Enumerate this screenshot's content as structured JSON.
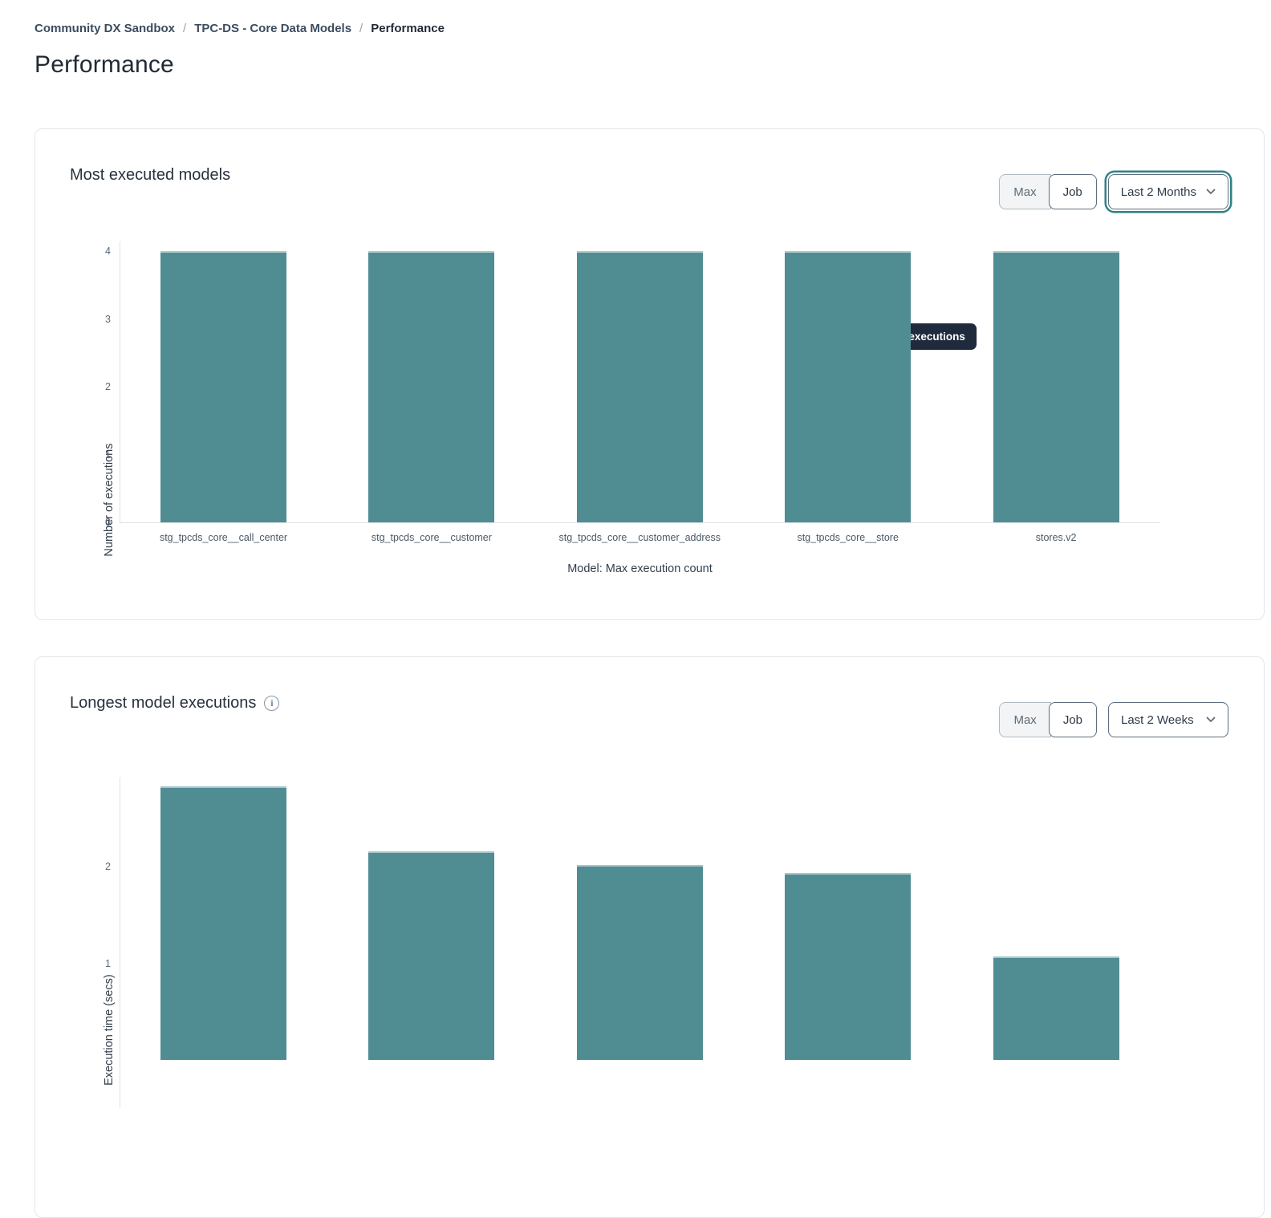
{
  "breadcrumb": {
    "separator": "/",
    "items": [
      {
        "label": "Community DX Sandbox"
      },
      {
        "label": "TPC-DS - Core Data Models"
      },
      {
        "label": "Performance"
      }
    ]
  },
  "page_title": "Performance",
  "cards": [
    {
      "title": "Most executed models",
      "toggle": {
        "options": [
          "Max",
          "Job"
        ],
        "selected": "Job"
      },
      "dropdown": {
        "value": "Last 2 Months",
        "focused": true
      },
      "tooltip": "4 executions"
    },
    {
      "title": "Longest model executions",
      "toggle": {
        "options": [
          "Max",
          "Job"
        ],
        "selected": "Job"
      },
      "dropdown": {
        "value": "Last 2 Weeks",
        "focused": false
      }
    }
  ],
  "colors": {
    "bar": "#4f8d93",
    "tooltip_bg": "#1f2b3d",
    "focus_ring": "#2f8187",
    "axis_line": "#dde2e6"
  },
  "chart_data": [
    {
      "type": "bar",
      "title": "Most executed models",
      "categories": [
        "stg_tpcds_core__call_center",
        "stg_tpcds_core__customer",
        "stg_tpcds_core__customer_address",
        "stg_tpcds_core__store",
        "stores.v2"
      ],
      "values": [
        4,
        4,
        4,
        4,
        4
      ],
      "xlabel": "Model: Max execution count",
      "ylabel": "Number of executions",
      "ylim": [
        0,
        4
      ],
      "yticks": [
        0,
        1,
        2,
        3,
        4
      ],
      "legend": false,
      "grid": false,
      "tooltip": {
        "bar_index": 3,
        "text": "4 executions"
      }
    },
    {
      "type": "bar",
      "title": "Longest model executions",
      "categories": [],
      "values": [
        2.83,
        2.16,
        2.02,
        1.93,
        1.07
      ],
      "xlabel": "",
      "ylabel": "Execution time (secs)",
      "ylim": [
        0,
        3
      ],
      "yticks": [
        1,
        2
      ],
      "legend": false,
      "grid": false,
      "note": "chart cropped at bottom of viewport; category labels not visible"
    }
  ]
}
